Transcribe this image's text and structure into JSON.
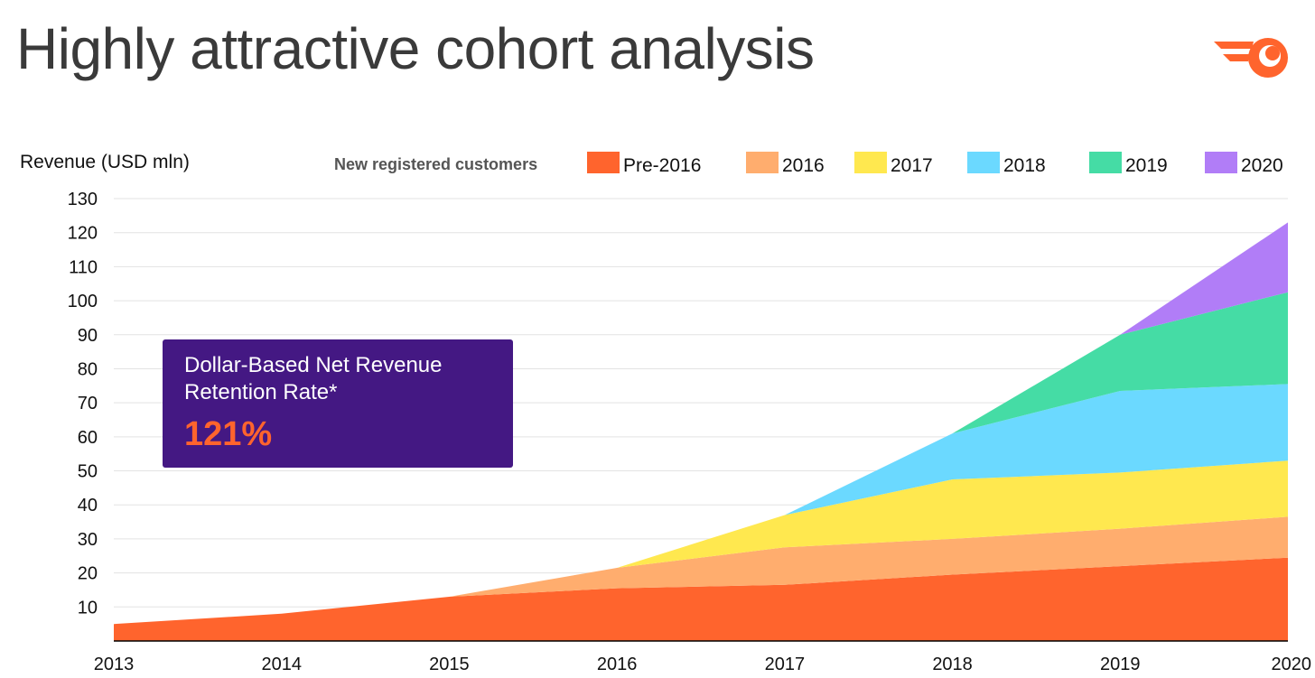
{
  "page": {
    "title": "Highly attractive cohort analysis",
    "logo_icon": "semrush-comet-icon",
    "logo_color": "#ff642d"
  },
  "callout": {
    "label": "Dollar-Based Net Revenue\nRetention Rate*",
    "value": "121%",
    "background": "#441883",
    "value_color": "#ff642d"
  },
  "chart_data": {
    "type": "area",
    "stacked": true,
    "ylabel": "Revenue (USD mln)",
    "legend_title": "New registered customers",
    "legend_position": "top-right",
    "x": [
      "2013",
      "2014",
      "2015",
      "2016",
      "2017",
      "2018",
      "2019",
      "2020"
    ],
    "ylim": [
      0,
      130
    ],
    "yticks": [
      10,
      20,
      30,
      40,
      50,
      60,
      70,
      80,
      90,
      100,
      110,
      120,
      130
    ],
    "grid": true,
    "series": [
      {
        "name": "Pre-2016",
        "color": "#ff642d",
        "values": [
          5,
          8,
          13,
          15.5,
          16.5,
          19.5,
          22,
          24.5
        ]
      },
      {
        "name": "2016",
        "color": "#ffad6e",
        "values": [
          0,
          0,
          0,
          6,
          11,
          10.5,
          11,
          12
        ]
      },
      {
        "name": "2017",
        "color": "#ffe84f",
        "values": [
          0,
          0,
          0,
          0,
          9.5,
          17.5,
          16.5,
          16.5
        ]
      },
      {
        "name": "2018",
        "color": "#6bd9ff",
        "values": [
          0,
          0,
          0,
          0,
          0,
          13.5,
          24,
          22.5
        ]
      },
      {
        "name": "2019",
        "color": "#45dca5",
        "values": [
          0,
          0,
          0,
          0,
          0,
          0,
          16.5,
          27
        ]
      },
      {
        "name": "2020",
        "color": "#b17df7",
        "values": [
          0,
          0,
          0,
          0,
          0,
          0,
          0,
          20.5
        ]
      }
    ]
  }
}
